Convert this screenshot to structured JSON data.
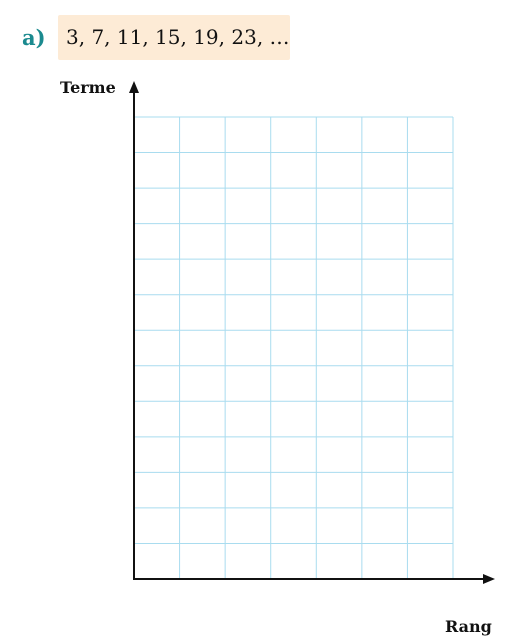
{
  "exercise": {
    "label": "a)",
    "sequence": "3, 7, 11, 15, 19, 23, …"
  },
  "graph": {
    "y_axis_label": "Terme",
    "x_axis_label": "Rang",
    "grid_columns": 7,
    "grid_rows": 13,
    "grid_color": "#a9dcef",
    "axis_color": "#111111",
    "accent_color": "#1b8a8f",
    "highlight_color": "#fdebd6"
  }
}
